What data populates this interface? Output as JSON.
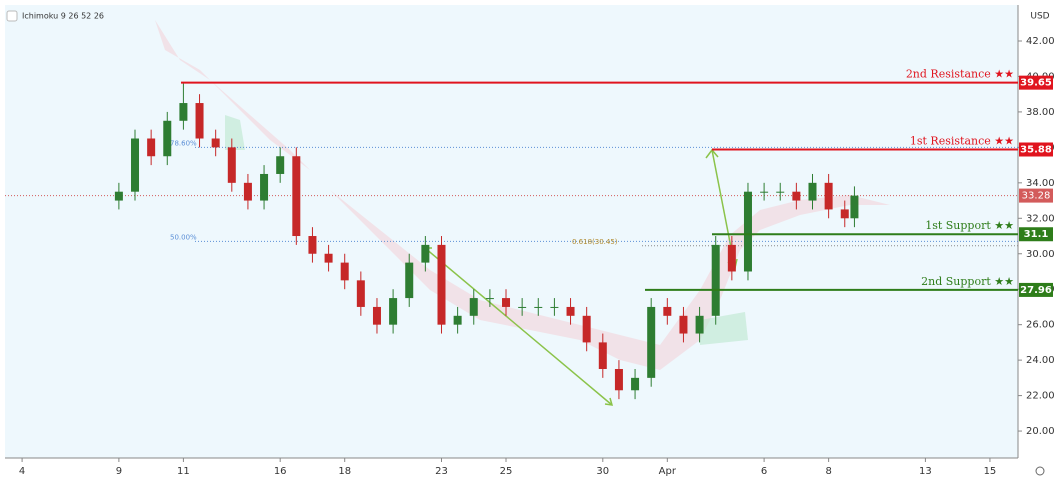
{
  "chart_data": {
    "type": "candlestick",
    "indicator": "Ichimoku 9 26 52 26",
    "currency": "USD",
    "up_color": "#2e7d32",
    "down_color": "#c62828",
    "x": [
      3,
      3.5,
      4,
      4.5,
      5,
      5.5,
      6,
      6.5,
      7,
      7.5,
      8,
      8.5,
      9,
      9.5,
      10,
      10.5,
      11,
      11.5,
      12,
      12.5,
      13,
      13.5,
      14,
      14.5,
      15,
      15.5,
      16,
      16.5,
      17,
      17.5,
      18,
      18.5,
      19,
      19.5,
      20,
      20.5,
      21,
      21.5,
      22,
      22.5,
      23,
      23.5,
      24,
      24.5,
      25,
      25.5,
      25.8
    ],
    "open": [
      33.0,
      33.5,
      36.5,
      35.5,
      37.5,
      38.5,
      36.5,
      36,
      34,
      33,
      34.5,
      35.5,
      31,
      30,
      29.5,
      28.5,
      27,
      26,
      27.5,
      29.5,
      30.5,
      26,
      26.5,
      27.5,
      27.5,
      27,
      27,
      27,
      27,
      26.5,
      25,
      23.5,
      22.3,
      23,
      27,
      26.5,
      25.5,
      26.5,
      30.5,
      29,
      33.5,
      33.5,
      33.5,
      33,
      34,
      32.5,
      32
    ],
    "high": [
      34.0,
      37.0,
      37.0,
      38.0,
      39.6,
      39.0,
      37.0,
      36.5,
      34.5,
      35.0,
      36.0,
      36.0,
      31.5,
      30.5,
      30.0,
      29.0,
      27.5,
      28.0,
      30.0,
      31.0,
      31.0,
      27.0,
      28.0,
      28.0,
      28.0,
      27.5,
      27.5,
      27.5,
      27.5,
      27.0,
      25.5,
      24.0,
      23.5,
      27.5,
      27.5,
      27.0,
      27.0,
      31.0,
      31.0,
      34.0,
      34.0,
      34.0,
      34.0,
      34.5,
      34.5,
      33.0,
      33.8
    ],
    "low": [
      32.5,
      33.0,
      35.0,
      35.0,
      37.0,
      36.0,
      35.5,
      33.5,
      32.5,
      32.5,
      34.0,
      30.5,
      29.5,
      29.0,
      28.0,
      26.5,
      25.5,
      25.5,
      27.0,
      29.0,
      25.5,
      25.5,
      26.0,
      27.0,
      26.5,
      26.5,
      26.5,
      26.5,
      26.0,
      24.5,
      23.0,
      21.8,
      21.8,
      22.5,
      26.0,
      25.0,
      25.0,
      26.0,
      28.5,
      28.5,
      33.0,
      33.0,
      32.5,
      32.5,
      32.0,
      31.5,
      31.5
    ],
    "close": [
      33.5,
      36.5,
      35.5,
      37.5,
      38.5,
      36.5,
      36,
      34,
      33,
      34.5,
      35.5,
      31,
      30,
      29.5,
      28.5,
      27,
      26,
      27.5,
      29.5,
      30.5,
      26,
      26.5,
      27.5,
      27.5,
      27,
      27,
      27,
      27,
      26.5,
      25,
      23.5,
      22.3,
      23,
      27,
      26.5,
      25.5,
      26.5,
      30.5,
      29,
      33.5,
      33.5,
      33.5,
      33,
      34,
      32.5,
      32,
      33.28
    ],
    "xlim": [
      -0.53,
      30.87
    ],
    "xticks": [
      {
        "value": 0,
        "label": "4"
      },
      {
        "value": 3,
        "label": "9"
      },
      {
        "value": 5,
        "label": "11"
      },
      {
        "value": 8,
        "label": "16"
      },
      {
        "value": 10,
        "label": "18"
      },
      {
        "value": 13,
        "label": "23"
      },
      {
        "value": 15,
        "label": "25"
      },
      {
        "value": 18,
        "label": "30"
      },
      {
        "value": 20,
        "label": "Apr"
      },
      {
        "value": 23,
        "label": "6"
      },
      {
        "value": 25,
        "label": "8"
      },
      {
        "value": 28,
        "label": "13"
      },
      {
        "value": 30,
        "label": "15"
      }
    ],
    "ylim": [
      18.48,
      44.03
    ],
    "yticks": [
      {
        "value": 20,
        "label": "20.00"
      },
      {
        "value": 22,
        "label": "22.00"
      },
      {
        "value": 24,
        "label": "24.00"
      },
      {
        "value": 26,
        "label": "26.00"
      },
      {
        "value": 28,
        "label": "28.00"
      },
      {
        "value": 30,
        "label": "30.00"
      },
      {
        "value": 32,
        "label": "32.00"
      },
      {
        "value": 34,
        "label": "34.00"
      },
      {
        "value": 36,
        "label": "36.00"
      },
      {
        "value": 38,
        "label": "38.00"
      },
      {
        "value": 40,
        "label": "40.00"
      },
      {
        "value": 42,
        "label": "42.00"
      }
    ],
    "levels": [
      {
        "name": "2nd Resistance ★★",
        "value": 39.65,
        "color": "#e0141e"
      },
      {
        "name": "1st Resistance ★★",
        "value": 35.88,
        "color": "#e0141e"
      },
      {
        "name": "1st Support ★★",
        "value": 31.1,
        "color": "#2e7d1a"
      },
      {
        "name": "2nd Support ★★",
        "value": 27.96,
        "color": "#2e7d1a"
      }
    ],
    "last_price": 33.28,
    "fib_levels": [
      {
        "label": "78.60%",
        "value": 36.0
      },
      {
        "label": "50.00%",
        "value": 30.7
      },
      {
        "label": "0.618(30.45)",
        "value": 30.45
      }
    ]
  }
}
